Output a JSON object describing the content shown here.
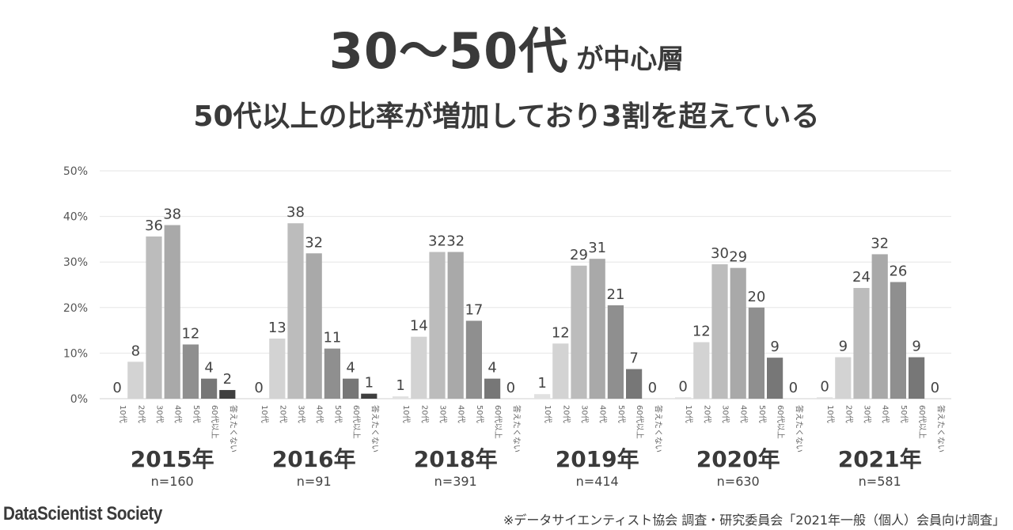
{
  "header": {
    "title_main": "30～50代",
    "title_suffix": "が中心層",
    "subtitle": "50代以上の比率が増加しており3割を超えている"
  },
  "chart_data": {
    "type": "bar",
    "ylim": [
      0,
      50
    ],
    "yticks": [
      "0%",
      "10%",
      "20%",
      "30%",
      "40%",
      "50%"
    ],
    "categories": [
      "10代",
      "20代",
      "30代",
      "40代",
      "50代",
      "60代以上",
      "答えたくない"
    ],
    "bar_colors": [
      "#e1e1e1",
      "#d3d3d3",
      "#bcbcbc",
      "#a9a9a9",
      "#8f8f8f",
      "#777777",
      "#3f3f3f"
    ],
    "groups": [
      {
        "year": "2015年",
        "n": "n=160",
        "values": [
          0,
          8,
          36,
          38,
          12,
          4,
          2
        ],
        "heights": [
          0,
          8.1,
          35.6,
          38.1,
          11.9,
          4.4,
          1.9
        ]
      },
      {
        "year": "2016年",
        "n": "n=91",
        "values": [
          0,
          13,
          38,
          32,
          11,
          4,
          1
        ],
        "heights": [
          0,
          13.2,
          38.5,
          31.9,
          11.0,
          4.4,
          1.1
        ]
      },
      {
        "year": "2018年",
        "n": "n=391",
        "values": [
          1,
          14,
          32,
          32,
          17,
          4,
          0
        ],
        "heights": [
          0.5,
          13.6,
          32.2,
          32.2,
          17.1,
          4.4,
          0
        ]
      },
      {
        "year": "2019年",
        "n": "n=414",
        "values": [
          1,
          12,
          29,
          31,
          21,
          7,
          0
        ],
        "heights": [
          1.0,
          12.1,
          29.2,
          30.7,
          20.5,
          6.5,
          0
        ]
      },
      {
        "year": "2020年",
        "n": "n=630",
        "values": [
          0,
          12,
          30,
          29,
          20,
          9,
          0
        ],
        "heights": [
          0.3,
          12.4,
          29.5,
          28.7,
          20.0,
          9.0,
          0
        ]
      },
      {
        "year": "2021年",
        "n": "n=581",
        "values": [
          0,
          9,
          24,
          32,
          26,
          9,
          0
        ],
        "heights": [
          0.3,
          9.1,
          24.3,
          31.7,
          25.6,
          9.1,
          0
        ]
      }
    ]
  },
  "footer": {
    "brand": "DataScientist Society",
    "source": "※データサイエンティスト協会 調査・研究委員会「2021年一般（個人）会員向け調査」"
  }
}
